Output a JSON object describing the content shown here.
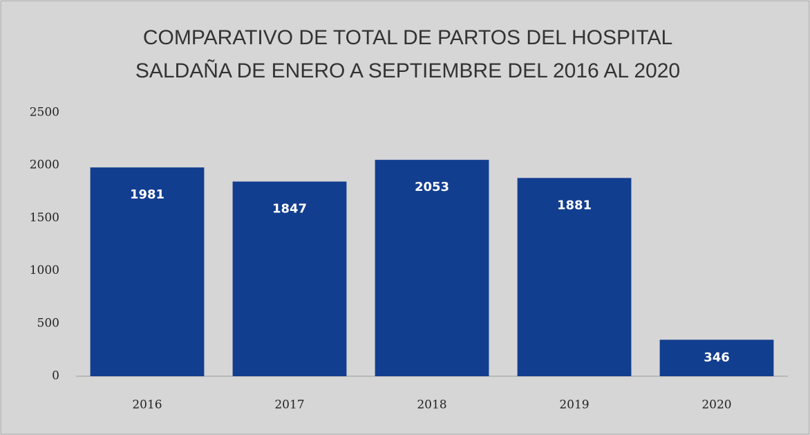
{
  "chart_data": {
    "type": "bar",
    "title": [
      "COMPARATIVO DE TOTAL DE PARTOS DEL HOSPITAL",
      "SALDAÑA DE ENERO A SEPTIEMBRE DEL 2016 AL 2020"
    ],
    "categories": [
      "2016",
      "2017",
      "2018",
      "2019",
      "2020"
    ],
    "values": [
      1981,
      1847,
      2053,
      1881,
      346
    ],
    "color": "#123e8f",
    "ylim": [
      0,
      2500
    ],
    "yticks": [
      0,
      500,
      1000,
      1500,
      2000,
      2500
    ],
    "grid": false
  }
}
